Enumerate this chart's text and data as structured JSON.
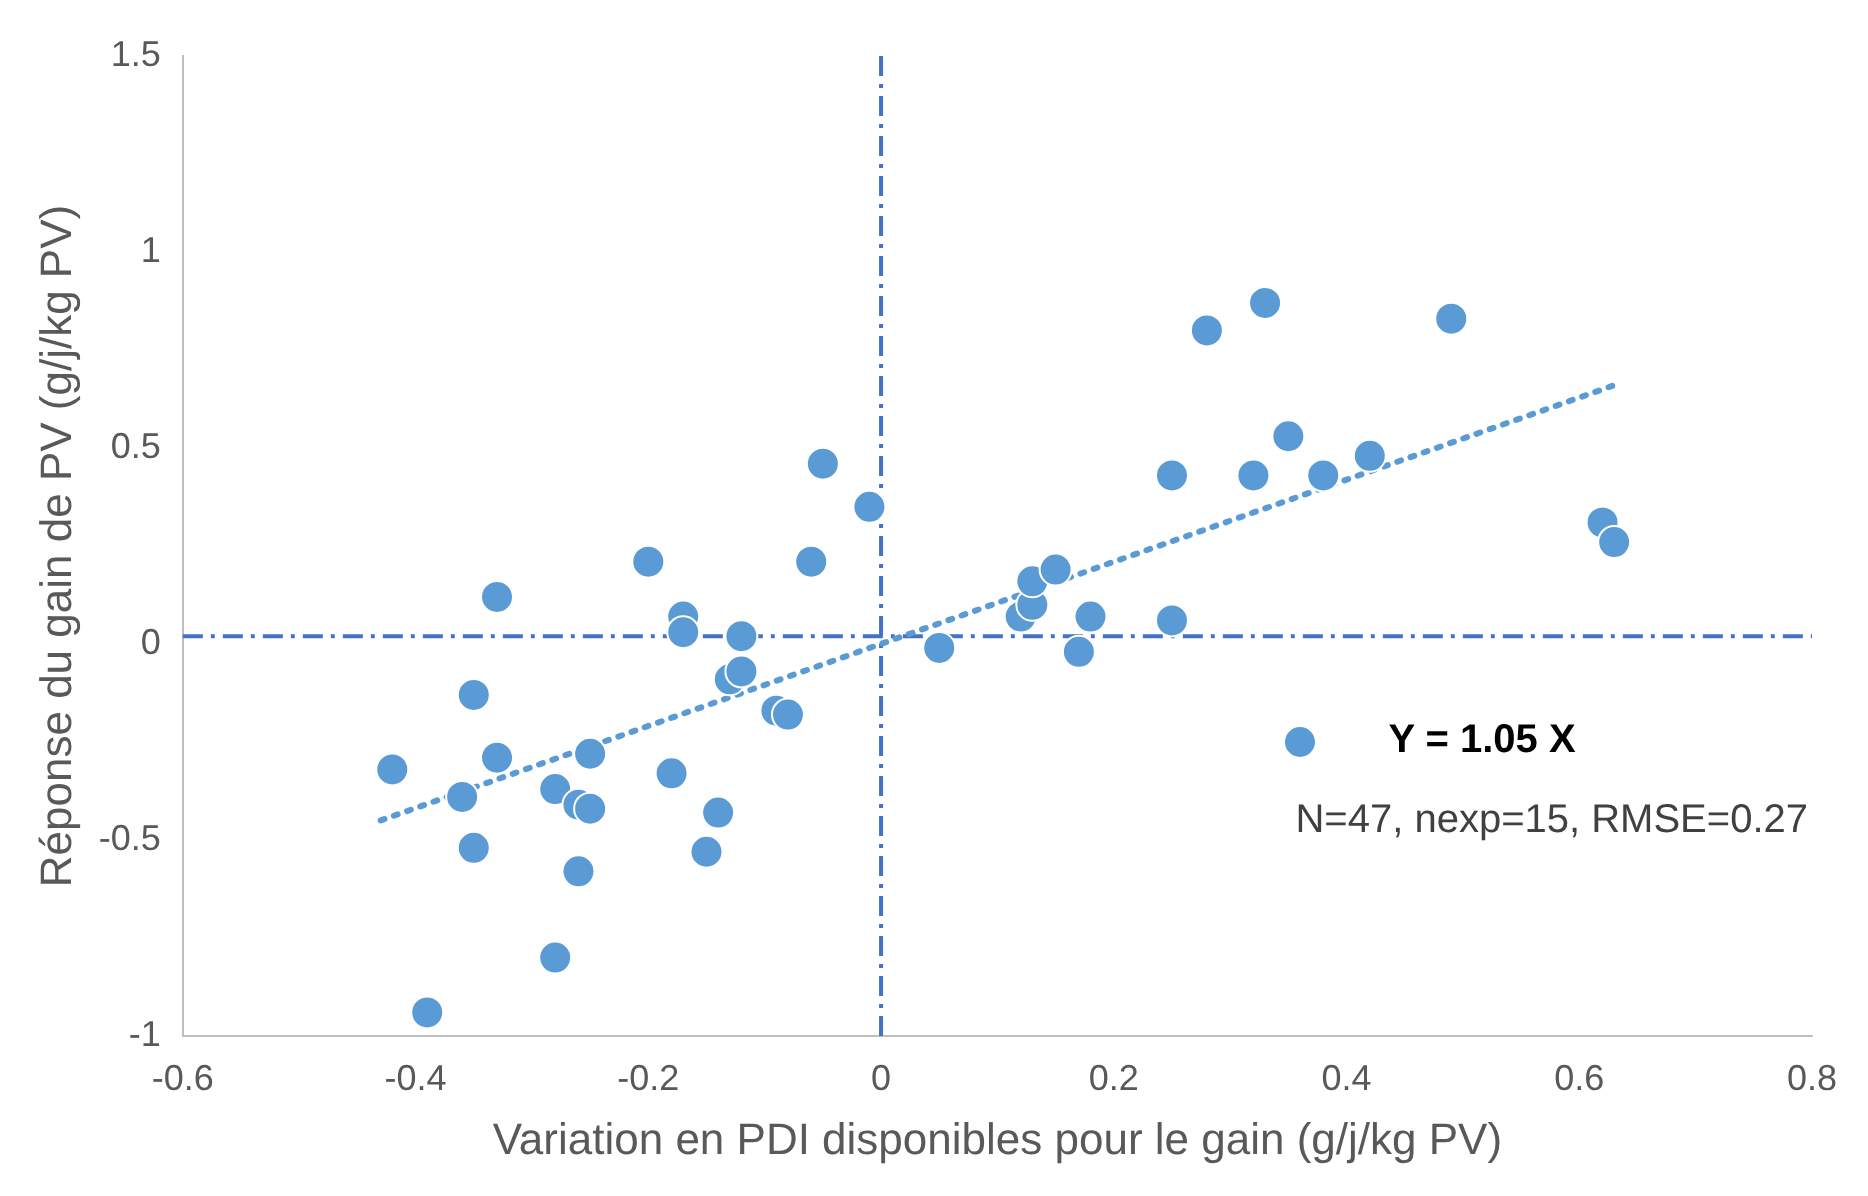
{
  "chart_data": {
    "type": "scatter",
    "xlabel": "Variation en PDI disponibles pour le gain (g/j/kg PV)",
    "ylabel": "Réponse du gain de PV (g/j/kg PV)",
    "x": [
      -0.42,
      -0.35,
      -0.33,
      -0.33,
      -0.36,
      -0.35,
      -0.39,
      -0.28,
      -0.28,
      -0.25,
      -0.26,
      -0.25,
      -0.26,
      -0.2,
      -0.17,
      -0.17,
      -0.18,
      -0.15,
      -0.14,
      -0.13,
      -0.12,
      -0.12,
      -0.09,
      -0.08,
      -0.05,
      -0.06,
      -0.01,
      0.05,
      0.12,
      0.13,
      0.13,
      0.15,
      0.17,
      0.18,
      0.25,
      0.25,
      0.28,
      0.33,
      0.32,
      0.35,
      0.36,
      0.38,
      0.42,
      0.49,
      0.62,
      0.63
    ],
    "series": [
      {
        "type": "scatter",
        "color": "#5b9bd5",
        "marker": "circle",
        "values": [
          -0.32,
          -0.13,
          0.12,
          -0.29,
          -0.39,
          -0.52,
          -0.94,
          -0.37,
          -0.8,
          -0.28,
          -0.41,
          -0.42,
          -0.58,
          0.21,
          0.07,
          0.03,
          -0.33,
          -0.53,
          -0.43,
          -0.09,
          0.02,
          -0.07,
          -0.17,
          -0.18,
          0.46,
          0.21,
          0.35,
          -0.01,
          0.07,
          0.1,
          0.16,
          0.19,
          -0.02,
          0.07,
          0.43,
          0.06,
          0.8,
          0.87,
          0.43,
          0.53,
          -0.25,
          0.43,
          0.48,
          0.83,
          0.31,
          0.26
        ]
      },
      {
        "type": "line",
        "color": "#5b9bd5",
        "line_style": "dotted",
        "marker": "none",
        "x": [
          -0.43,
          0.63
        ],
        "values": [
          -0.45,
          0.66
        ]
      }
    ],
    "xlim": [
      -0.6,
      0.8
    ],
    "xticks": [
      -0.6,
      -0.4,
      -0.2,
      0,
      0.2,
      0.4,
      0.6,
      0.8
    ],
    "ylim": [
      -1,
      1.5
    ],
    "yticks": [
      -1,
      -0.5,
      0,
      0.5,
      1,
      1.5
    ],
    "ref_lines": [
      {
        "axis": "y",
        "value": 0.02,
        "color": "#4472c4",
        "line_style": "dashed"
      },
      {
        "axis": "x",
        "value": 0,
        "color": "#4472c4",
        "line_style": "dashed"
      }
    ],
    "annotations": [
      "Y = 1.05 X",
      "N=47, nexp=15, RMSE=0.27"
    ],
    "grid": false,
    "legend": false
  }
}
